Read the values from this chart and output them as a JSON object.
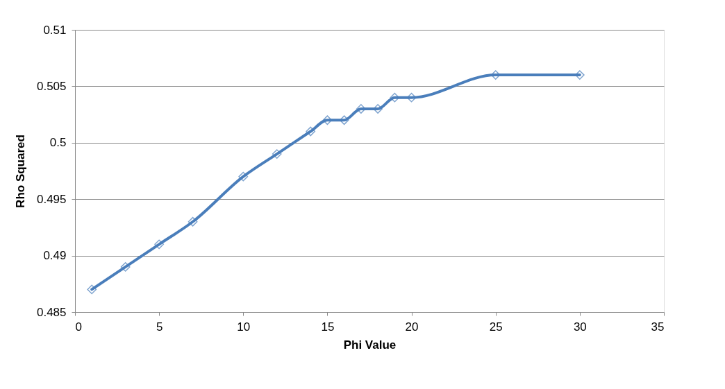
{
  "chart_data": {
    "type": "line",
    "xlabel": "Phi Value",
    "ylabel": "Rho Squared",
    "x": [
      1,
      3,
      5,
      7,
      10,
      12,
      14,
      15,
      16,
      17,
      18,
      19,
      20,
      25,
      30
    ],
    "series": [
      {
        "color": "#4a7ebb",
        "values": [
          0.487,
          0.489,
          0.491,
          0.493,
          0.497,
          0.499,
          0.501,
          0.502,
          0.502,
          0.503,
          0.503,
          0.504,
          0.504,
          0.506,
          0.506
        ]
      }
    ],
    "xlim": [
      0,
      35
    ],
    "xticks": [
      0,
      5,
      10,
      15,
      20,
      25,
      30,
      35
    ],
    "ylim": [
      0.485,
      0.51
    ],
    "yticks": [
      0.485,
      0.49,
      0.495,
      0.5,
      0.505,
      0.51
    ],
    "grid": "y",
    "legend": false,
    "marker": "diamond",
    "line_style": "solid"
  }
}
